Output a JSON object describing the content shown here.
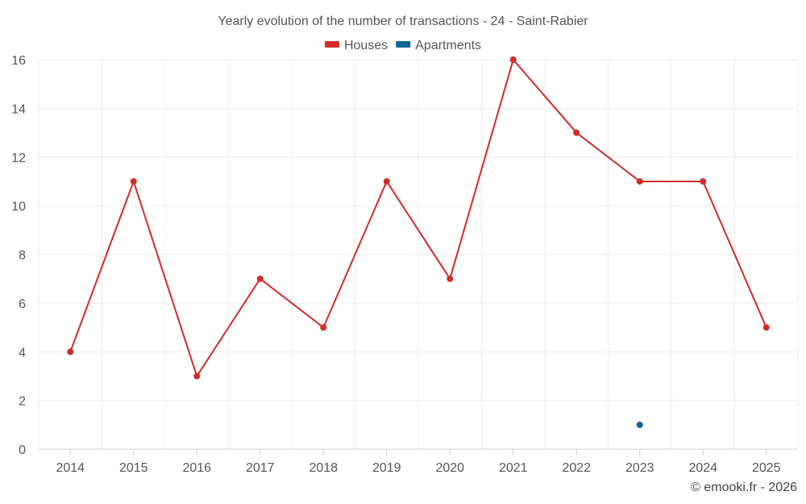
{
  "chart_data": {
    "type": "line",
    "title": "Yearly evolution of the number of transactions - 24 - Saint-Rabier",
    "categories": [
      "2014",
      "2015",
      "2016",
      "2017",
      "2018",
      "2019",
      "2020",
      "2021",
      "2022",
      "2023",
      "2024",
      "2025"
    ],
    "series": [
      {
        "name": "Houses",
        "color": "#d32a2a",
        "values": [
          4,
          11,
          3,
          7,
          5,
          11,
          7,
          16,
          13,
          11,
          11,
          5
        ]
      },
      {
        "name": "Apartments",
        "color": "#0b6696",
        "values": [
          null,
          null,
          null,
          null,
          null,
          null,
          null,
          null,
          null,
          1,
          null,
          null
        ]
      }
    ],
    "ylim": [
      0,
      16
    ],
    "yticks": [
      "0",
      "2",
      "4",
      "6",
      "8",
      "10",
      "12",
      "14",
      "16"
    ],
    "xlabel": "",
    "ylabel": "",
    "grid": true,
    "legend_position": "top-center"
  },
  "credit": "© emooki.fr - 2026"
}
